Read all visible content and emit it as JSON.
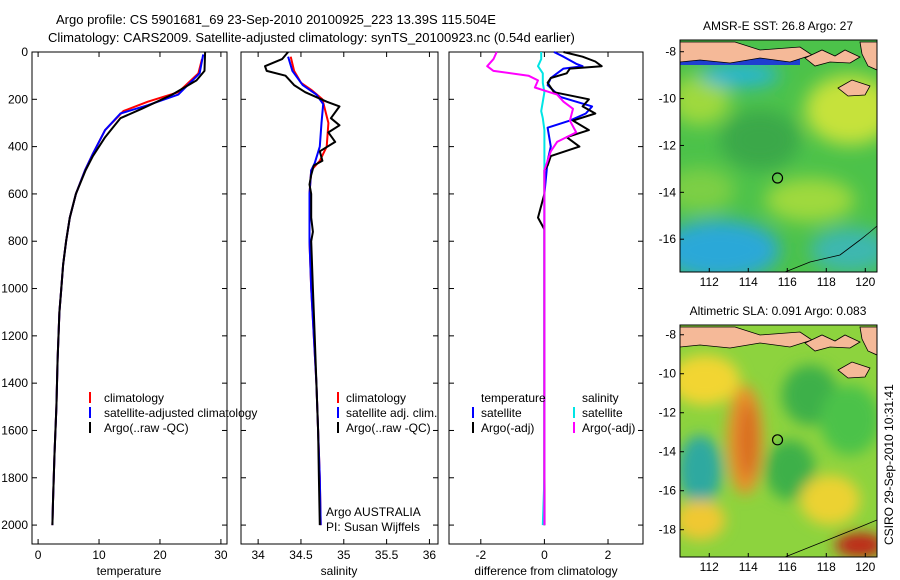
{
  "title": {
    "line1": "Argo profile: CS 5901681_69 23-Sep-2010 20100925_223 13.39S 115.504E",
    "line2": "Climatology: CARS2009. Satellite-adjusted climatology: synTS_20100923.nc (0.54d earlier)"
  },
  "side_label": "CSIRO 29-Sep-2010 10:31:41",
  "colors": {
    "clim": "#ff0000",
    "sat": "#0000ff",
    "argo": "#000000",
    "cyan": "#00e5e5",
    "magenta": "#ff00ff",
    "land": "#f5b998"
  },
  "chart_data": [
    {
      "type": "line",
      "xlabel": "temperature",
      "xlim": [
        -1,
        31
      ],
      "ylim": [
        0,
        2080
      ],
      "xticks": [
        0,
        10,
        20,
        30
      ],
      "yticks": [
        0,
        200,
        400,
        600,
        800,
        1000,
        1200,
        1400,
        1600,
        1800,
        2000
      ],
      "series": [
        {
          "name": "climatology",
          "color": "#ff0000",
          "points": [
            [
              26.9,
              30
            ],
            [
              26.3,
              90
            ],
            [
              23,
              170
            ],
            [
              18,
              210
            ],
            [
              14,
              250
            ],
            [
              11,
              330
            ],
            [
              9,
              430
            ],
            [
              7.7,
              500
            ],
            [
              6.2,
              600
            ],
            [
              5.2,
              700
            ],
            [
              4.6,
              800
            ],
            [
              4.1,
              900
            ],
            [
              3.8,
              1000
            ],
            [
              3.5,
              1100
            ],
            [
              3.2,
              1300
            ],
            [
              3,
              1500
            ],
            [
              2.7,
              1700
            ],
            [
              2.45,
              1900
            ],
            [
              2.35,
              2000
            ]
          ]
        },
        {
          "name": "satellite-adjusted climatology",
          "color": "#0000ff",
          "points": [
            [
              27.1,
              10
            ],
            [
              26.5,
              90
            ],
            [
              23,
              180
            ],
            [
              18,
              225
            ],
            [
              13.5,
              260
            ],
            [
              11,
              330
            ],
            [
              9,
              430
            ],
            [
              7.7,
              500
            ],
            [
              6.2,
              600
            ],
            [
              5.2,
              700
            ],
            [
              4.6,
              800
            ],
            [
              4.1,
              900
            ],
            [
              3.8,
              1000
            ],
            [
              3.5,
              1100
            ],
            [
              3.2,
              1300
            ],
            [
              3,
              1500
            ],
            [
              2.7,
              1700
            ],
            [
              2.45,
              1900
            ],
            [
              2.35,
              2000
            ]
          ]
        },
        {
          "name": "Argo(..raw -QC)",
          "color": "#000000",
          "points": [
            [
              27.4,
              0
            ],
            [
              27.3,
              80
            ],
            [
              26,
              120
            ],
            [
              22,
              180
            ],
            [
              17,
              240
            ],
            [
              13.5,
              280
            ],
            [
              11,
              360
            ],
            [
              9,
              440
            ],
            [
              7.8,
              500
            ],
            [
              6.2,
              600
            ],
            [
              5.2,
              700
            ],
            [
              4.6,
              800
            ],
            [
              4.1,
              900
            ],
            [
              3.8,
              1000
            ],
            [
              3.5,
              1100
            ],
            [
              3.2,
              1300
            ],
            [
              3,
              1500
            ],
            [
              2.7,
              1700
            ],
            [
              2.45,
              1900
            ],
            [
              2.35,
              2000
            ]
          ]
        }
      ],
      "legend": {
        "placement": "bottom-right",
        "entries": [
          {
            "label": "climatology",
            "color": "#ff0000"
          },
          {
            "label": "satellite-adjusted climatology",
            "color": "#0000ff"
          },
          {
            "label": "Argo(..raw -QC)",
            "color": "#000000"
          }
        ]
      }
    },
    {
      "type": "line",
      "xlabel": "salinity",
      "xlim": [
        33.8,
        36.1
      ],
      "ylim": [
        0,
        2080
      ],
      "xticks": [
        34,
        34.5,
        35,
        35.5,
        36
      ],
      "yticks": [
        0,
        200,
        400,
        600,
        800,
        1000,
        1200,
        1400,
        1600,
        1800,
        2000
      ],
      "series": [
        {
          "name": "climatology",
          "color": "#ff0000",
          "points": [
            [
              34.38,
              20
            ],
            [
              34.42,
              80
            ],
            [
              34.5,
              130
            ],
            [
              34.62,
              160
            ],
            [
              34.75,
              200
            ],
            [
              34.82,
              300
            ],
            [
              34.8,
              400
            ],
            [
              34.72,
              460
            ],
            [
              34.62,
              500
            ],
            [
              34.6,
              600
            ],
            [
              34.6,
              800
            ],
            [
              34.62,
              1000
            ],
            [
              34.65,
              1200
            ],
            [
              34.68,
              1400
            ],
            [
              34.7,
              1600
            ],
            [
              34.72,
              1800
            ],
            [
              34.73,
              2000
            ]
          ]
        },
        {
          "name": "satellite adj. clim.",
          "color": "#0000ff",
          "points": [
            [
              34.35,
              20
            ],
            [
              34.4,
              80
            ],
            [
              34.52,
              140
            ],
            [
              34.68,
              180
            ],
            [
              34.76,
              220
            ],
            [
              34.74,
              300
            ],
            [
              34.72,
              400
            ],
            [
              34.66,
              470
            ],
            [
              34.62,
              500
            ],
            [
              34.6,
              600
            ],
            [
              34.6,
              800
            ],
            [
              34.62,
              1000
            ],
            [
              34.65,
              1200
            ],
            [
              34.68,
              1400
            ],
            [
              34.7,
              1600
            ],
            [
              34.72,
              1800
            ],
            [
              34.73,
              2000
            ]
          ]
        },
        {
          "name": "Argo(..raw -QC)",
          "color": "#000000",
          "points": [
            [
              34.35,
              0
            ],
            [
              34.28,
              30
            ],
            [
              34.08,
              60
            ],
            [
              34.1,
              80
            ],
            [
              34.32,
              100
            ],
            [
              34.42,
              140
            ],
            [
              34.55,
              170
            ],
            [
              34.8,
              210
            ],
            [
              34.95,
              230
            ],
            [
              34.85,
              280
            ],
            [
              34.95,
              310
            ],
            [
              34.82,
              340
            ],
            [
              34.9,
              380
            ],
            [
              34.72,
              420
            ],
            [
              34.75,
              460
            ],
            [
              34.65,
              480
            ],
            [
              34.62,
              520
            ],
            [
              34.6,
              560
            ],
            [
              34.62,
              600
            ],
            [
              34.62,
              700
            ],
            [
              34.64,
              760
            ],
            [
              34.62,
              800
            ],
            [
              34.64,
              1000
            ],
            [
              34.66,
              1200
            ],
            [
              34.68,
              1400
            ],
            [
              34.7,
              1600
            ],
            [
              34.71,
              1800
            ],
            [
              34.72,
              2000
            ]
          ]
        }
      ],
      "legend": {
        "placement": "bottom-right",
        "entries": [
          {
            "label": "climatology",
            "color": "#ff0000"
          },
          {
            "label": "satellite adj. clim.",
            "color": "#0000ff"
          },
          {
            "label": "Argo(..raw -QC)",
            "color": "#000000"
          }
        ]
      },
      "annotation": {
        "line1": "Argo AUSTRALIA",
        "line2": "PI: Susan Wijffels"
      }
    },
    {
      "type": "line",
      "xlabel": "difference from climatology",
      "xlim": [
        -3,
        3.1
      ],
      "ylim": [
        0,
        2080
      ],
      "xticks": [
        -2,
        0,
        2
      ],
      "yticks": [
        0,
        200,
        400,
        600,
        800,
        1000,
        1200,
        1400,
        1600,
        1800,
        2000
      ],
      "series": [
        {
          "name": "temperature satellite",
          "color": "#0000ff",
          "points": [
            [
              0.3,
              0
            ],
            [
              0.6,
              20
            ],
            [
              1.0,
              50
            ],
            [
              1.2,
              60
            ],
            [
              0.6,
              70
            ],
            [
              0.4,
              90
            ],
            [
              0.2,
              110
            ],
            [
              0.1,
              140
            ],
            [
              0.5,
              190
            ],
            [
              1.5,
              230
            ],
            [
              1.3,
              260
            ],
            [
              0.8,
              290
            ],
            [
              0.1,
              320
            ],
            [
              0.2,
              400
            ],
            [
              0.1,
              460
            ],
            [
              0,
              600
            ],
            [
              0,
              1000
            ],
            [
              0,
              1500
            ],
            [
              0,
              2000
            ]
          ]
        },
        {
          "name": "temperature Argo(-adj)",
          "color": "#000000",
          "points": [
            [
              0.6,
              0
            ],
            [
              1.2,
              20
            ],
            [
              1.6,
              40
            ],
            [
              1.8,
              60
            ],
            [
              0.8,
              70
            ],
            [
              0.7,
              90
            ],
            [
              0.2,
              110
            ],
            [
              0.1,
              130
            ],
            [
              0.3,
              170
            ],
            [
              1.4,
              200
            ],
            [
              1.2,
              230
            ],
            [
              1.6,
              260
            ],
            [
              0.9,
              290
            ],
            [
              1.4,
              330
            ],
            [
              0.7,
              360
            ],
            [
              1.1,
              400
            ],
            [
              0.2,
              440
            ],
            [
              0.1,
              480
            ],
            [
              0,
              500
            ],
            [
              0,
              600
            ],
            [
              -0.2,
              700
            ],
            [
              0,
              750
            ],
            [
              0,
              1000
            ],
            [
              0,
              1500
            ],
            [
              0,
              2000
            ]
          ]
        },
        {
          "name": "salinity satellite",
          "color": "#00e5e5",
          "points": [
            [
              -0.1,
              0
            ],
            [
              -0.1,
              30
            ],
            [
              -0.2,
              60
            ],
            [
              -0.05,
              90
            ],
            [
              -0.05,
              130
            ],
            [
              0,
              170
            ],
            [
              -0.05,
              210
            ],
            [
              -0.1,
              250
            ],
            [
              -0.05,
              280
            ],
            [
              0,
              330
            ],
            [
              0,
              500
            ],
            [
              0,
              1000
            ],
            [
              0,
              1500
            ],
            [
              0,
              1800
            ],
            [
              -0.05,
              2000
            ]
          ]
        },
        {
          "name": "salinity Argo(-adj)",
          "color": "#ff00ff",
          "points": [
            [
              -1.5,
              0
            ],
            [
              -1.6,
              30
            ],
            [
              -1.8,
              60
            ],
            [
              -1.6,
              80
            ],
            [
              -0.5,
              100
            ],
            [
              -0.2,
              120
            ],
            [
              -0.3,
              150
            ],
            [
              0.4,
              180
            ],
            [
              0.6,
              210
            ],
            [
              0.9,
              240
            ],
            [
              0.8,
              290
            ],
            [
              1.0,
              340
            ],
            [
              0.4,
              380
            ],
            [
              0.2,
              420
            ],
            [
              0.1,
              460
            ],
            [
              0,
              500
            ],
            [
              0,
              600
            ],
            [
              0,
              1000
            ],
            [
              0,
              1500
            ],
            [
              0,
              2000
            ]
          ]
        }
      ],
      "legend": {
        "placement": "bottom",
        "columns": [
          {
            "header": "temperature",
            "entries": [
              {
                "label": "satellite",
                "color": "#0000ff"
              },
              {
                "label": "Argo(-adj)",
                "color": "#000000"
              }
            ]
          },
          {
            "header": "salinity",
            "entries": [
              {
                "label": "satellite",
                "color": "#00e5e5"
              },
              {
                "label": "Argo(-adj)",
                "color": "#ff00ff"
              }
            ]
          }
        ]
      }
    },
    {
      "type": "heatmap",
      "title": "AMSR-E SST: 26.8 Argo: 27",
      "xlim": [
        110.5,
        120.6
      ],
      "ylim": [
        -17.4,
        -7.5
      ],
      "xticks": [
        112,
        114,
        116,
        118,
        120
      ],
      "yticks": [
        -8,
        -10,
        -12,
        -14,
        -16
      ],
      "marker": {
        "lon": 115.5,
        "lat": -13.39
      },
      "legend": "none"
    },
    {
      "type": "heatmap",
      "title": "Altimetric SLA: 0.091 Argo: 0.083",
      "xlim": [
        110.5,
        120.6
      ],
      "ylim": [
        -19.4,
        -7.5
      ],
      "xticks": [
        112,
        114,
        116,
        118,
        120
      ],
      "yticks": [
        -8,
        -10,
        -12,
        -14,
        -16,
        -18
      ],
      "marker": {
        "lon": 115.5,
        "lat": -13.39
      },
      "legend": "none"
    }
  ]
}
